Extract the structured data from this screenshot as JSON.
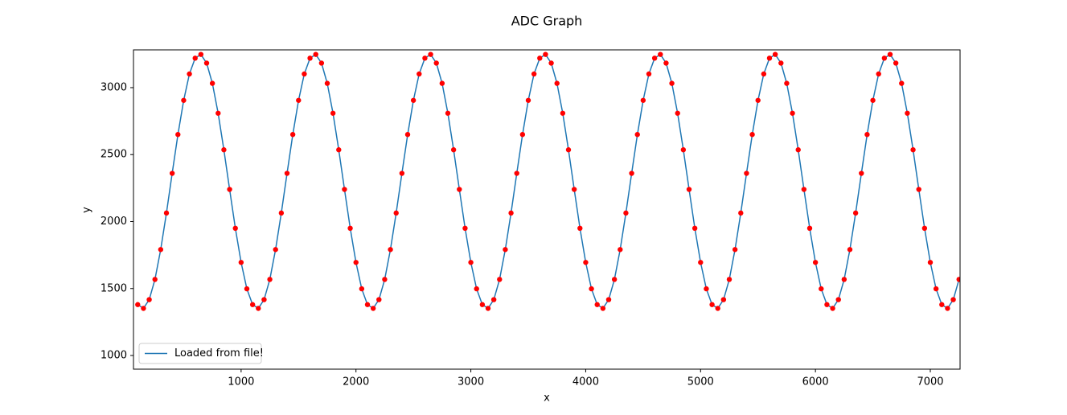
{
  "chart_data": {
    "type": "line",
    "title": "ADC Graph",
    "x_label": "x",
    "y_label": "y",
    "x": [
      100,
      150,
      200,
      250,
      300,
      350,
      400,
      450,
      500,
      550,
      600,
      650,
      700,
      750,
      800,
      850,
      900,
      950,
      1000,
      1050,
      1100,
      1150,
      1200,
      1250,
      1300,
      1350,
      1400,
      1450,
      1500,
      1550,
      1600,
      1650,
      1700,
      1750,
      1800,
      1850,
      1900,
      1950,
      2000,
      2050,
      2100,
      2150,
      2200,
      2250,
      2300,
      2350,
      2400,
      2450,
      2500,
      2550,
      2600,
      2650,
      2700,
      2750,
      2800,
      2850,
      2900,
      2950,
      3000,
      3050,
      3100,
      3150,
      3200,
      3250,
      3300,
      3350,
      3400,
      3450,
      3500,
      3550,
      3600,
      3650,
      3700,
      3750,
      3800,
      3850,
      3900,
      3950,
      4000,
      4050,
      4100,
      4150,
      4200,
      4250,
      4300,
      4350,
      4400,
      4450,
      4500,
      4550,
      4600,
      4650,
      4700,
      4750,
      4800,
      4850,
      4900,
      4950,
      5000,
      5050,
      5100,
      5150,
      5200,
      5250,
      5300,
      5350,
      5400,
      5450,
      5500,
      5550,
      5600,
      5650,
      5700,
      5750,
      5800,
      5850,
      5900,
      5950,
      6000,
      6050,
      6100,
      6150,
      6200,
      6250,
      6300,
      6350,
      6400,
      6450,
      6500,
      6550,
      6600,
      6650,
      6700,
      6750,
      6800,
      6850,
      6900,
      6950,
      7000,
      7050,
      7100,
      7150,
      7200,
      7250
    ],
    "series": [
      {
        "name": "Loaded from file!",
        "color": "#1f77b4",
        "marker_color": "#ff0000",
        "values": [
          1380,
          1352,
          1417,
          1568,
          1791,
          2064,
          2360,
          2650,
          2905,
          3102,
          3220,
          3248,
          3183,
          3032,
          2809,
          2536,
          2240,
          1950,
          1695,
          1498,
          1380,
          1352,
          1417,
          1568,
          1791,
          2064,
          2360,
          2650,
          2905,
          3102,
          3220,
          3248,
          3183,
          3032,
          2809,
          2536,
          2240,
          1950,
          1695,
          1498,
          1380,
          1352,
          1417,
          1568,
          1791,
          2064,
          2360,
          2650,
          2905,
          3102,
          3220,
          3248,
          3183,
          3032,
          2809,
          2536,
          2240,
          1950,
          1695,
          1498,
          1380,
          1352,
          1417,
          1568,
          1791,
          2064,
          2360,
          2650,
          2905,
          3102,
          3220,
          3248,
          3183,
          3032,
          2809,
          2536,
          2240,
          1950,
          1695,
          1498,
          1380,
          1352,
          1417,
          1568,
          1791,
          2064,
          2360,
          2650,
          2905,
          3102,
          3220,
          3248,
          3183,
          3032,
          2809,
          2536,
          2240,
          1950,
          1695,
          1498,
          1380,
          1352,
          1417,
          1568,
          1791,
          2064,
          2360,
          2650,
          2905,
          3102,
          3220,
          3248,
          3183,
          3032,
          2809,
          2536,
          2240,
          1950,
          1695,
          1498,
          1380,
          1352,
          1417,
          1568,
          1791,
          2064,
          2360,
          2650,
          2905,
          3102,
          3220,
          3248,
          3183,
          3032,
          2809,
          2536,
          2240,
          1950,
          1695,
          1498,
          1380,
          1352,
          1417,
          1568
        ]
      }
    ],
    "xlim": [
      63,
      7259
    ],
    "xticks": [
      1000,
      2000,
      3000,
      4000,
      5000,
      6000,
      7000
    ],
    "ylim": [
      898,
      3282
    ],
    "yticks": [
      1000,
      1500,
      2000,
      2500,
      3000
    ],
    "grid": false,
    "legend": "lower left"
  }
}
